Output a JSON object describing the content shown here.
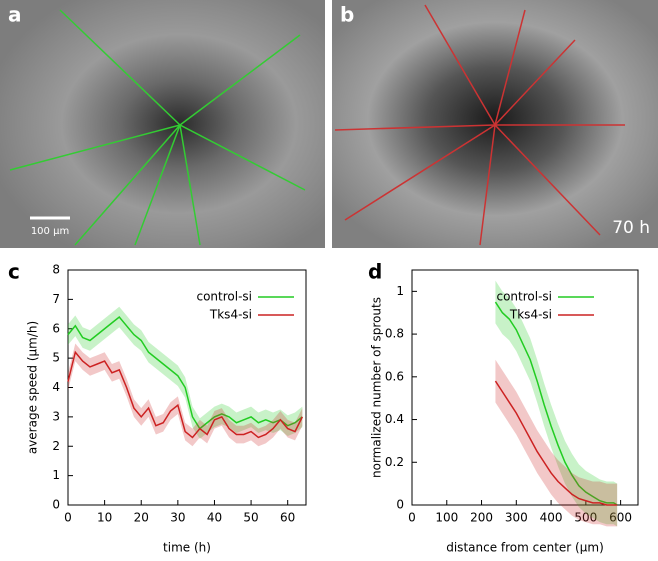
{
  "panels": [
    {
      "label": "a",
      "scale_bar": "100 µm"
    },
    {
      "label": "b",
      "time": "70 h"
    }
  ],
  "chart_data": [
    {
      "type": "line",
      "panel": "c",
      "xlabel": "time (h)",
      "ylabel": "average speed (µm/h)",
      "xlim": [
        0,
        65
      ],
      "xticks": [
        0,
        10,
        20,
        30,
        40,
        50,
        60
      ],
      "ylim": [
        0,
        8
      ],
      "yticks": [
        0,
        1,
        2,
        3,
        4,
        5,
        6,
        7,
        8
      ],
      "series": [
        {
          "name": "control-si",
          "color": "#22cc22",
          "band": 0.35,
          "x": [
            0,
            2,
            4,
            6,
            8,
            10,
            12,
            14,
            16,
            18,
            20,
            22,
            24,
            26,
            28,
            30,
            32,
            34,
            36,
            38,
            40,
            42,
            44,
            46,
            48,
            50,
            52,
            54,
            56,
            58,
            60,
            62,
            64
          ],
          "values": [
            5.8,
            6.1,
            5.7,
            5.6,
            5.8,
            6.0,
            6.2,
            6.4,
            6.1,
            5.8,
            5.6,
            5.2,
            5.0,
            4.8,
            4.6,
            4.4,
            4.0,
            3.0,
            2.6,
            2.8,
            3.0,
            3.1,
            3.0,
            2.8,
            2.9,
            3.0,
            2.8,
            2.9,
            2.8,
            2.9,
            2.7,
            2.8,
            3.0
          ]
        },
        {
          "name": "Tks4-si",
          "color": "#cc2222",
          "band": 0.3,
          "x": [
            0,
            2,
            4,
            6,
            8,
            10,
            12,
            14,
            16,
            18,
            20,
            22,
            24,
            26,
            28,
            30,
            32,
            34,
            36,
            38,
            40,
            42,
            44,
            46,
            48,
            50,
            52,
            54,
            56,
            58,
            60,
            62,
            64
          ],
          "values": [
            4.2,
            5.2,
            4.9,
            4.7,
            4.8,
            4.9,
            4.5,
            4.6,
            4.0,
            3.3,
            3.0,
            3.3,
            2.7,
            2.8,
            3.2,
            3.4,
            2.5,
            2.3,
            2.6,
            2.4,
            2.9,
            3.0,
            2.6,
            2.4,
            2.4,
            2.5,
            2.3,
            2.4,
            2.6,
            2.9,
            2.6,
            2.5,
            3.0
          ]
        }
      ]
    },
    {
      "type": "line",
      "panel": "d",
      "xlabel": "distance from center (µm)",
      "ylabel": "normalized number of sprouts",
      "xlim": [
        0,
        650
      ],
      "xticks": [
        0,
        100,
        200,
        300,
        400,
        500,
        600
      ],
      "ylim": [
        0,
        1.1
      ],
      "yticks": [
        0,
        0.2,
        0.4,
        0.6,
        0.8,
        1
      ],
      "series": [
        {
          "name": "control-si",
          "color": "#22cc22",
          "band": 0.1,
          "x": [
            240,
            260,
            280,
            300,
            320,
            340,
            360,
            380,
            400,
            420,
            440,
            460,
            480,
            500,
            520,
            540,
            560,
            580,
            590
          ],
          "values": [
            0.95,
            0.9,
            0.87,
            0.82,
            0.75,
            0.68,
            0.58,
            0.47,
            0.37,
            0.28,
            0.2,
            0.14,
            0.09,
            0.06,
            0.04,
            0.02,
            0.01,
            0.01,
            0
          ]
        },
        {
          "name": "Tks4-si",
          "color": "#cc2222",
          "band": 0.1,
          "x": [
            240,
            260,
            280,
            300,
            320,
            340,
            360,
            380,
            400,
            420,
            440,
            460,
            480,
            500,
            520,
            540,
            560,
            580,
            590
          ],
          "values": [
            0.58,
            0.53,
            0.48,
            0.43,
            0.37,
            0.31,
            0.25,
            0.2,
            0.15,
            0.11,
            0.08,
            0.05,
            0.03,
            0.02,
            0.01,
            0.01,
            0,
            0,
            0
          ]
        }
      ]
    }
  ]
}
